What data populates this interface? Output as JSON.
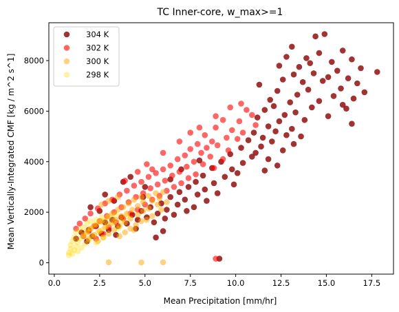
{
  "chart_data": {
    "type": "scatter",
    "title": "TC Inner-core,  w_max>=1",
    "xlabel": "Mean Precipitation [mm/hr]",
    "ylabel": "Mean Vertically-Integrated CMF [kg / m^2 s^1]",
    "xlim": [
      -0.3,
      18.7
    ],
    "ylim": [
      -450,
      9500
    ],
    "xticks": [
      0.0,
      2.5,
      5.0,
      7.5,
      10.0,
      12.5,
      15.0,
      17.5
    ],
    "xtick_labels": [
      "0.0",
      "2.5",
      "5.0",
      "7.5",
      "10.0",
      "12.5",
      "15.0",
      "17.5"
    ],
    "yticks": [
      0,
      2000,
      4000,
      6000,
      8000
    ],
    "ytick_labels": [
      "0",
      "2000",
      "4000",
      "6000",
      "8000"
    ],
    "grid": false,
    "legend_position": "top-left",
    "series": [
      {
        "name": "304 K",
        "color": "#8b0000",
        "alpha": 0.8,
        "points": [
          [
            14.9,
            9050
          ],
          [
            14.4,
            8960
          ],
          [
            13.1,
            8550
          ],
          [
            15.9,
            8400
          ],
          [
            14.6,
            8300
          ],
          [
            12.8,
            8150
          ],
          [
            13.9,
            8100
          ],
          [
            16.4,
            8050
          ],
          [
            15.3,
            7950
          ],
          [
            14.1,
            7900
          ],
          [
            12.4,
            7800
          ],
          [
            13.5,
            7750
          ],
          [
            16.9,
            7700
          ],
          [
            15.6,
            7600
          ],
          [
            14.3,
            7500
          ],
          [
            17.8,
            7550
          ],
          [
            13.2,
            7450
          ],
          [
            15.1,
            7350
          ],
          [
            16.2,
            7300
          ],
          [
            12.6,
            7250
          ],
          [
            14.8,
            7200
          ],
          [
            13.7,
            7150
          ],
          [
            11.3,
            7050
          ],
          [
            16.7,
            7100
          ],
          [
            15.8,
            6900
          ],
          [
            14.0,
            6850
          ],
          [
            12.3,
            6800
          ],
          [
            17.1,
            6750
          ],
          [
            13.4,
            6650
          ],
          [
            15.4,
            6600
          ],
          [
            16.5,
            6500
          ],
          [
            11.9,
            6450
          ],
          [
            14.6,
            6400
          ],
          [
            13.0,
            6350
          ],
          [
            15.9,
            6250
          ],
          [
            12.1,
            6200
          ],
          [
            14.2,
            6150
          ],
          [
            16.1,
            6100
          ],
          [
            11.6,
            6050
          ],
          [
            13.3,
            5950
          ],
          [
            12.7,
            5850
          ],
          [
            15.1,
            5800
          ],
          [
            11.2,
            5750
          ],
          [
            13.8,
            5650
          ],
          [
            12.4,
            5600
          ],
          [
            16.4,
            5500
          ],
          [
            11.8,
            5400
          ],
          [
            13.1,
            5300
          ],
          [
            12.2,
            5200
          ],
          [
            11.0,
            5150
          ],
          [
            12.8,
            5050
          ],
          [
            13.6,
            5000
          ],
          [
            11.5,
            4950
          ],
          [
            10.7,
            4850
          ],
          [
            12.0,
            4800
          ],
          [
            13.2,
            4700
          ],
          [
            11.4,
            4600
          ],
          [
            10.3,
            4550
          ],
          [
            12.6,
            4450
          ],
          [
            11.1,
            4350
          ],
          [
            9.7,
            4300
          ],
          [
            10.9,
            4200
          ],
          [
            11.8,
            4100
          ],
          [
            9.2,
            4000
          ],
          [
            10.4,
            3950
          ],
          [
            12.3,
            3850
          ],
          [
            8.7,
            3750
          ],
          [
            9.8,
            3700
          ],
          [
            11.6,
            3650
          ],
          [
            10.1,
            3550
          ],
          [
            8.2,
            3450
          ],
          [
            9.4,
            3400
          ],
          [
            7.8,
            3200
          ],
          [
            8.8,
            3150
          ],
          [
            9.9,
            3100
          ],
          [
            7.4,
            3000
          ],
          [
            8.3,
            2900
          ],
          [
            6.9,
            2800
          ],
          [
            7.9,
            2700
          ],
          [
            9.0,
            2750
          ],
          [
            6.4,
            2600
          ],
          [
            7.2,
            2500
          ],
          [
            8.4,
            2450
          ],
          [
            5.9,
            2350
          ],
          [
            6.8,
            2300
          ],
          [
            7.7,
            2200
          ],
          [
            5.3,
            2200
          ],
          [
            6.2,
            2100
          ],
          [
            7.3,
            2050
          ],
          [
            4.8,
            2050
          ],
          [
            5.7,
            1950
          ],
          [
            6.6,
            1900
          ],
          [
            4.3,
            1900
          ],
          [
            5.1,
            1800
          ],
          [
            6.1,
            1750
          ],
          [
            3.7,
            1800
          ],
          [
            4.6,
            1700
          ],
          [
            5.5,
            1600
          ],
          [
            3.2,
            1700
          ],
          [
            4.0,
            1550
          ],
          [
            2.8,
            1600
          ],
          [
            3.5,
            1450
          ],
          [
            4.5,
            1350
          ],
          [
            2.3,
            1450
          ],
          [
            3.0,
            1300
          ],
          [
            6.0,
            1250
          ],
          [
            1.9,
            1300
          ],
          [
            2.6,
            1150
          ],
          [
            1.5,
            1200
          ],
          [
            2.1,
            1050
          ],
          [
            5.6,
            1000
          ],
          [
            3.4,
            1100
          ],
          [
            1.2,
            950
          ],
          [
            1.8,
            850
          ],
          [
            2.5,
            2050
          ],
          [
            2.0,
            2200
          ],
          [
            2.8,
            2700
          ],
          [
            3.8,
            3200
          ],
          [
            4.2,
            3400
          ],
          [
            5.0,
            3000
          ],
          [
            6.4,
            3300
          ],
          [
            3.3,
            2450
          ],
          [
            4.9,
            2600
          ],
          [
            7.0,
            3700
          ],
          [
            8.0,
            4050
          ],
          [
            9.1,
            160
          ]
        ]
      },
      {
        "name": "302 K",
        "color": "#ff0000",
        "alpha": 0.6,
        "points": [
          [
            10.6,
            6050
          ],
          [
            10.9,
            5850
          ],
          [
            9.3,
            5650
          ],
          [
            10.2,
            5600
          ],
          [
            11.1,
            5450
          ],
          [
            8.9,
            5350
          ],
          [
            9.8,
            5250
          ],
          [
            10.4,
            5150
          ],
          [
            8.3,
            5050
          ],
          [
            9.5,
            4950
          ],
          [
            10.1,
            4900
          ],
          [
            8.7,
            4800
          ],
          [
            7.9,
            4700
          ],
          [
            9.0,
            4650
          ],
          [
            8.4,
            4550
          ],
          [
            7.5,
            4500
          ],
          [
            9.6,
            4450
          ],
          [
            8.1,
            4350
          ],
          [
            7.2,
            4250
          ],
          [
            8.6,
            4200
          ],
          [
            9.3,
            4100
          ],
          [
            6.8,
            4100
          ],
          [
            7.7,
            4000
          ],
          [
            8.2,
            3900
          ],
          [
            6.4,
            3850
          ],
          [
            7.3,
            3800
          ],
          [
            8.8,
            3750
          ],
          [
            6.0,
            3700
          ],
          [
            6.9,
            3600
          ],
          [
            7.8,
            3500
          ],
          [
            5.6,
            3550
          ],
          [
            6.5,
            3450
          ],
          [
            7.4,
            3350
          ],
          [
            5.2,
            3400
          ],
          [
            6.1,
            3250
          ],
          [
            7.0,
            3150
          ],
          [
            4.8,
            3200
          ],
          [
            5.7,
            3100
          ],
          [
            6.6,
            3000
          ],
          [
            4.4,
            3050
          ],
          [
            5.3,
            2950
          ],
          [
            6.2,
            2850
          ],
          [
            4.0,
            2850
          ],
          [
            4.9,
            2750
          ],
          [
            5.8,
            2650
          ],
          [
            3.6,
            2700
          ],
          [
            4.5,
            2600
          ],
          [
            5.4,
            2500
          ],
          [
            3.2,
            2500
          ],
          [
            4.1,
            2400
          ],
          [
            5.0,
            2300
          ],
          [
            2.8,
            2350
          ],
          [
            3.7,
            2200
          ],
          [
            4.6,
            2100
          ],
          [
            2.4,
            2150
          ],
          [
            3.3,
            2000
          ],
          [
            4.2,
            1950
          ],
          [
            2.0,
            1950
          ],
          [
            2.9,
            1850
          ],
          [
            3.8,
            1750
          ],
          [
            1.7,
            1750
          ],
          [
            2.5,
            1650
          ],
          [
            3.4,
            1600
          ],
          [
            1.4,
            1550
          ],
          [
            2.2,
            1450
          ],
          [
            3.0,
            1400
          ],
          [
            1.2,
            1350
          ],
          [
            1.9,
            1250
          ],
          [
            2.7,
            1150
          ],
          [
            1.6,
            1050
          ],
          [
            2.3,
            950
          ],
          [
            6.0,
            4350
          ],
          [
            5.4,
            3700
          ],
          [
            4.6,
            3600
          ],
          [
            3.9,
            3250
          ],
          [
            6.9,
            4800
          ],
          [
            8.0,
            5350
          ],
          [
            8.9,
            5800
          ],
          [
            9.7,
            6150
          ],
          [
            10.3,
            6300
          ],
          [
            7.5,
            5150
          ],
          [
            5.1,
            3900
          ],
          [
            8.9,
            160
          ]
        ]
      },
      {
        "name": "300 K",
        "color": "#ffa500",
        "alpha": 0.5,
        "points": [
          [
            6.0,
            2800
          ],
          [
            5.6,
            2750
          ],
          [
            5.2,
            2650
          ],
          [
            4.8,
            2600
          ],
          [
            5.8,
            2550
          ],
          [
            4.4,
            2500
          ],
          [
            5.4,
            2450
          ],
          [
            4.9,
            2400
          ],
          [
            4.1,
            2350
          ],
          [
            5.7,
            2300
          ],
          [
            4.6,
            2250
          ],
          [
            3.8,
            2200
          ],
          [
            5.2,
            2150
          ],
          [
            4.3,
            2100
          ],
          [
            3.5,
            2100
          ],
          [
            4.9,
            2050
          ],
          [
            4.0,
            1950
          ],
          [
            3.2,
            1950
          ],
          [
            4.6,
            1900
          ],
          [
            3.7,
            1850
          ],
          [
            5.4,
            1850
          ],
          [
            2.9,
            1800
          ],
          [
            4.2,
            1750
          ],
          [
            3.4,
            1700
          ],
          [
            4.8,
            1650
          ],
          [
            2.6,
            1650
          ],
          [
            3.9,
            1600
          ],
          [
            3.1,
            1550
          ],
          [
            4.5,
            1500
          ],
          [
            2.3,
            1500
          ],
          [
            3.6,
            1450
          ],
          [
            2.8,
            1400
          ],
          [
            4.2,
            1350
          ],
          [
            2.0,
            1350
          ],
          [
            3.3,
            1300
          ],
          [
            2.5,
            1250
          ],
          [
            3.9,
            1200
          ],
          [
            1.8,
            1200
          ],
          [
            3.0,
            1150
          ],
          [
            2.2,
            1100
          ],
          [
            1.6,
            1050
          ],
          [
            2.7,
            1000
          ],
          [
            3.6,
            1050
          ],
          [
            1.9,
            950
          ],
          [
            2.4,
            850
          ],
          [
            4.4,
            1300
          ],
          [
            5.1,
            1700
          ],
          [
            5.9,
            2100
          ],
          [
            6.2,
            2400
          ],
          [
            3.0,
            2450
          ],
          [
            3.5,
            2600
          ],
          [
            2.6,
            2300
          ],
          [
            3.0,
            20
          ],
          [
            4.8,
            10
          ],
          [
            6.0,
            20
          ]
        ]
      },
      {
        "name": "298 K",
        "color": "#ffd700",
        "alpha": 0.35,
        "points": [
          [
            3.4,
            1900
          ],
          [
            3.0,
            1850
          ],
          [
            2.6,
            1800
          ],
          [
            3.2,
            1750
          ],
          [
            2.3,
            1700
          ],
          [
            2.8,
            1650
          ],
          [
            2.0,
            1650
          ],
          [
            2.5,
            1600
          ],
          [
            3.3,
            1550
          ],
          [
            1.8,
            1550
          ],
          [
            2.2,
            1500
          ],
          [
            2.9,
            1450
          ],
          [
            1.6,
            1400
          ],
          [
            2.0,
            1350
          ],
          [
            2.6,
            1300
          ],
          [
            1.4,
            1300
          ],
          [
            1.8,
            1250
          ],
          [
            2.4,
            1200
          ],
          [
            1.2,
            1200
          ],
          [
            1.6,
            1100
          ],
          [
            2.1,
            1050
          ],
          [
            1.1,
            1000
          ],
          [
            1.4,
            950
          ],
          [
            1.9,
            900
          ],
          [
            1.0,
            850
          ],
          [
            1.3,
            800
          ],
          [
            1.7,
            750
          ],
          [
            0.9,
            700
          ],
          [
            1.2,
            650
          ],
          [
            1.5,
            600
          ],
          [
            0.9,
            550
          ],
          [
            1.1,
            500
          ],
          [
            1.3,
            450
          ],
          [
            0.8,
            400
          ],
          [
            1.0,
            350
          ],
          [
            0.8,
            300
          ],
          [
            2.7,
            1000
          ],
          [
            2.3,
            800
          ],
          [
            3.5,
            1350
          ],
          [
            3.7,
            1650
          ],
          [
            4.0,
            1850
          ]
        ]
      }
    ]
  }
}
